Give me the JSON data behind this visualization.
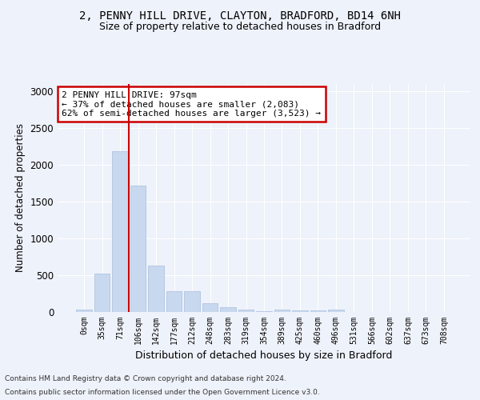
{
  "title_line1": "2, PENNY HILL DRIVE, CLAYTON, BRADFORD, BD14 6NH",
  "title_line2": "Size of property relative to detached houses in Bradford",
  "xlabel": "Distribution of detached houses by size in Bradford",
  "ylabel": "Number of detached properties",
  "bar_color": "#c8d8ee",
  "bar_edge_color": "#a8bedd",
  "background_color": "#eef2fa",
  "grid_color": "#ffffff",
  "categories": [
    "0sqm",
    "35sqm",
    "71sqm",
    "106sqm",
    "142sqm",
    "177sqm",
    "212sqm",
    "248sqm",
    "283sqm",
    "319sqm",
    "354sqm",
    "389sqm",
    "425sqm",
    "460sqm",
    "496sqm",
    "531sqm",
    "566sqm",
    "602sqm",
    "637sqm",
    "673sqm",
    "708sqm"
  ],
  "values": [
    30,
    525,
    2185,
    1720,
    635,
    280,
    280,
    115,
    70,
    35,
    15,
    35,
    20,
    20,
    30,
    0,
    0,
    0,
    0,
    0,
    0
  ],
  "ylim": [
    0,
    3100
  ],
  "yticks": [
    0,
    500,
    1000,
    1500,
    2000,
    2500,
    3000
  ],
  "annotation_text": "2 PENNY HILL DRIVE: 97sqm\n← 37% of detached houses are smaller (2,083)\n62% of semi-detached houses are larger (3,523) →",
  "annotation_box_color": "#ffffff",
  "annotation_box_edge": "#cc0000",
  "property_line_color": "#cc0000",
  "footnote_line1": "Contains HM Land Registry data © Crown copyright and database right 2024.",
  "footnote_line2": "Contains public sector information licensed under the Open Government Licence v3.0."
}
